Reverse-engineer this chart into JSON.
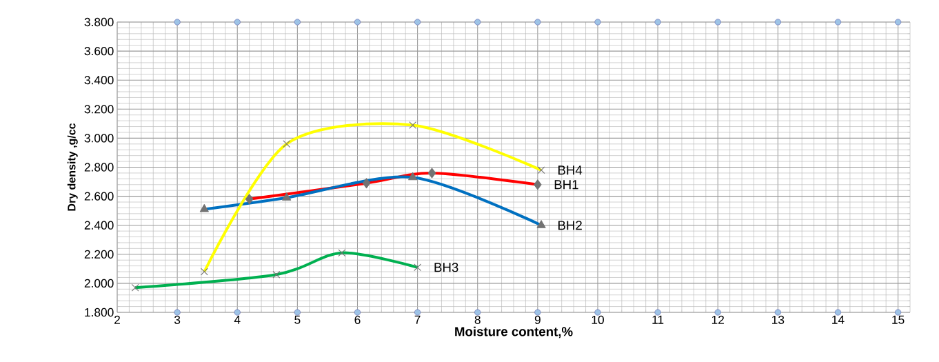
{
  "chart_data": {
    "type": "line",
    "xlabel": "Moisture content,%",
    "ylabel": "Dry density ,g/cc",
    "xlim": [
      2,
      15.2
    ],
    "xticks": [
      2,
      3,
      4,
      5,
      6,
      7,
      8,
      9,
      10,
      11,
      12,
      13,
      14,
      15
    ],
    "ylim": [
      1.8,
      3.8
    ],
    "yticks": [
      {
        "value": 1.8,
        "label": "1.800"
      },
      {
        "value": 2.0,
        "label": "2.000"
      },
      {
        "value": 2.2,
        "label": "2.200"
      },
      {
        "value": 2.4,
        "label": "2.400"
      },
      {
        "value": 2.6,
        "label": "2.600"
      },
      {
        "value": 2.8,
        "label": "2.800"
      },
      {
        "value": 3.0,
        "label": "3.000"
      },
      {
        "value": 3.2,
        "label": "3.200"
      },
      {
        "value": 3.4,
        "label": "3.400"
      },
      {
        "value": 3.6,
        "label": "3.600"
      },
      {
        "value": 3.8,
        "label": "3.800"
      }
    ],
    "grid": true,
    "series": [
      {
        "name": "BH1",
        "color": "#ff0000",
        "marker": "diamond",
        "x": [
          4.2,
          6.15,
          7.24,
          9.0
        ],
        "values": [
          2.58,
          2.69,
          2.76,
          2.68
        ]
      },
      {
        "name": "BH2",
        "color": "#0070c0",
        "marker": "triangle",
        "x": [
          3.45,
          4.82,
          6.92,
          9.06
        ],
        "values": [
          2.51,
          2.59,
          2.73,
          2.4
        ]
      },
      {
        "name": "BH3",
        "color": "#00b050",
        "marker": "cross",
        "x": [
          2.3,
          4.65,
          5.74,
          7.0
        ],
        "values": [
          1.97,
          2.06,
          2.21,
          2.11
        ]
      },
      {
        "name": "BH4",
        "color": "#ffff00",
        "marker": "cross",
        "x": [
          3.45,
          4.82,
          6.92,
          9.06
        ],
        "values": [
          2.08,
          2.96,
          3.09,
          2.78
        ]
      },
      {
        "type": "scatter",
        "color": "#9dc3e6",
        "marker": "circle",
        "x": [
          3,
          4,
          5,
          6,
          7,
          8,
          9,
          10,
          11,
          12,
          13,
          14,
          15
        ],
        "values": [
          3.8,
          3.8,
          3.8,
          3.8,
          3.8,
          3.8,
          3.8,
          3.8,
          3.8,
          3.8,
          3.8,
          3.8,
          3.8
        ]
      },
      {
        "type": "scatter",
        "color": "#9dc3e6",
        "marker": "circle",
        "x": [
          3,
          4,
          5,
          6,
          7,
          8,
          9,
          10,
          11,
          12,
          13,
          14,
          15
        ],
        "values": [
          1.8,
          1.8,
          1.8,
          1.8,
          1.8,
          1.8,
          1.8,
          1.8,
          1.8,
          1.8,
          1.8,
          1.8,
          1.8
        ]
      }
    ]
  }
}
